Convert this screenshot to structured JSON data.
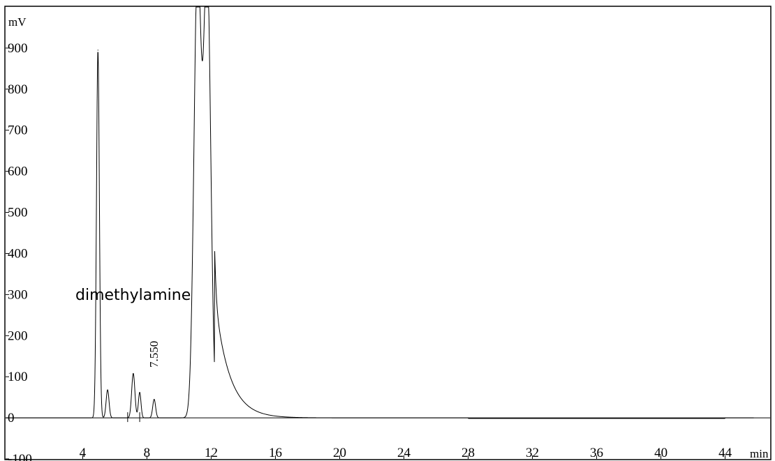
{
  "chart_data": {
    "type": "line",
    "xunit": "min",
    "yunit": "mV",
    "xlim": [
      -0.8,
      46.8
    ],
    "ylim": [
      -100,
      1000
    ],
    "x_ticks": [
      "4",
      "8",
      "12",
      "16",
      "20",
      "24",
      "28",
      "32",
      "36",
      "40",
      "44"
    ],
    "y_ticks": [
      "-100",
      "0",
      "100",
      "200",
      "300",
      "400",
      "500",
      "600",
      "700",
      "800",
      "900"
    ],
    "y_tick_values": [
      -100,
      0,
      100,
      200,
      300,
      400,
      500,
      600,
      700,
      800,
      900
    ],
    "x_tick_values": [
      4,
      8,
      12,
      16,
      20,
      24,
      28,
      32,
      36,
      40,
      44
    ],
    "annotations": {
      "compound": "dimethylamine",
      "retention_time": "7.550"
    },
    "series": [
      {
        "peaks": [
          {
            "rt": 4.95,
            "height": 895
          },
          {
            "rt": 5.55,
            "height": 68
          },
          {
            "rt": 7.15,
            "height": 108
          },
          {
            "rt": 7.55,
            "height": 62
          },
          {
            "rt": 8.45,
            "height": 45
          },
          {
            "rt": 11.15,
            "height": 1100
          },
          {
            "rt": 11.75,
            "height": 1100
          }
        ],
        "tail": {
          "start": 12.2,
          "amplitude": 300,
          "decay_min": 0.9,
          "end": 19.5
        }
      }
    ]
  }
}
